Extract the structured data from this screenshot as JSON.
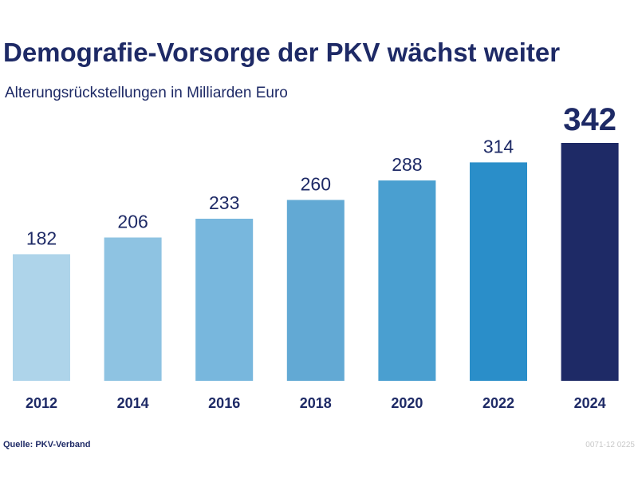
{
  "chart_data": {
    "type": "bar",
    "title": "Demografie-Vorsorge der PKV wächst weiter",
    "subtitle": "Alterungsrückstellungen in Milliarden Euro",
    "categories": [
      "2012",
      "2014",
      "2016",
      "2018",
      "2020",
      "2022",
      "2024"
    ],
    "values": [
      182,
      206,
      233,
      260,
      288,
      314,
      342
    ],
    "colors": [
      "#aed4ea",
      "#8ec3e2",
      "#78b7dd",
      "#62a9d4",
      "#4a9fd0",
      "#2a8ec9",
      "#1e2a66"
    ],
    "source": "Quelle: PKV-Verband",
    "code": "0071-12 0225"
  }
}
